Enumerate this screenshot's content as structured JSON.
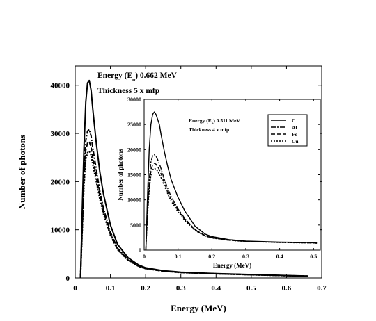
{
  "chart_data": [
    {
      "id": "main",
      "type": "line",
      "xlabel": "Energy (MeV)",
      "ylabel": "Number of photons",
      "xlim": [
        0,
        0.7
      ],
      "ylim": [
        0,
        44000
      ],
      "xticks": [
        "0",
        "0.1",
        "0.2",
        "0.3",
        "0.4",
        "0.5",
        "0.6",
        "0.7"
      ],
      "xtick_values": [
        0,
        0.1,
        0.2,
        0.3,
        0.4,
        0.5,
        0.6,
        0.7
      ],
      "yticks": [
        "0",
        "10000",
        "20000",
        "30000",
        "40000"
      ],
      "ytick_values": [
        0,
        10000,
        20000,
        30000,
        40000
      ],
      "annotations": [
        {
          "name": "energy-annotation",
          "parts": [
            "Energy (E",
            "o",
            ") 0.662 MeV"
          ]
        },
        {
          "name": "thickness-annotation",
          "text": "Thickness 5 x mfp"
        }
      ],
      "grid": false,
      "series": [
        {
          "style": "solid",
          "x": [
            0.015,
            0.02,
            0.025,
            0.03,
            0.035,
            0.04,
            0.045,
            0.05,
            0.06,
            0.07,
            0.08,
            0.1,
            0.12,
            0.15,
            0.18,
            0.2,
            0.25,
            0.3,
            0.4,
            0.5,
            0.6,
            0.662
          ],
          "y": [
            0,
            14000,
            27000,
            36500,
            40500,
            41000,
            39000,
            35000,
            28000,
            22000,
            17500,
            11000,
            7000,
            4200,
            2700,
            2100,
            1500,
            1200,
            900,
            700,
            500,
            400
          ]
        },
        {
          "style": "dash-dot",
          "x": [
            0.015,
            0.02,
            0.025,
            0.03,
            0.035,
            0.04,
            0.045,
            0.05,
            0.06,
            0.07,
            0.08,
            0.1,
            0.12,
            0.15,
            0.18,
            0.2,
            0.25,
            0.3,
            0.4,
            0.5,
            0.6,
            0.662
          ],
          "y": [
            0,
            11000,
            22000,
            28500,
            30500,
            30800,
            29500,
            27000,
            22500,
            18000,
            14500,
            9500,
            6200,
            3800,
            2500,
            2000,
            1450,
            1150,
            880,
            680,
            480,
            380
          ]
        },
        {
          "style": "dashed",
          "x": [
            0.015,
            0.02,
            0.025,
            0.03,
            0.035,
            0.04,
            0.045,
            0.05,
            0.06,
            0.07,
            0.08,
            0.1,
            0.12,
            0.15,
            0.18,
            0.2,
            0.25,
            0.3,
            0.4,
            0.5,
            0.6,
            0.662
          ],
          "y": [
            0,
            10000,
            20500,
            26500,
            28000,
            28300,
            27200,
            25000,
            21000,
            17000,
            13800,
            9000,
            6000,
            3700,
            2450,
            1950,
            1420,
            1130,
            860,
            660,
            470,
            370
          ]
        },
        {
          "style": "dotted",
          "x": [
            0.015,
            0.02,
            0.025,
            0.03,
            0.035,
            0.04,
            0.045,
            0.05,
            0.06,
            0.07,
            0.08,
            0.1,
            0.12,
            0.15,
            0.18,
            0.2,
            0.25,
            0.3,
            0.4,
            0.5,
            0.6,
            0.662
          ],
          "y": [
            0,
            9500,
            19000,
            24500,
            26000,
            26300,
            25500,
            23500,
            20000,
            16300,
            13300,
            8800,
            5900,
            3650,
            2400,
            1920,
            1400,
            1110,
            850,
            650,
            460,
            360
          ]
        }
      ]
    },
    {
      "id": "inset",
      "type": "line",
      "xlabel": "Energy (MeV)",
      "ylabel": "Number of photons",
      "xlim": [
        0,
        0.52
      ],
      "ylim": [
        0,
        30000
      ],
      "xticks": [
        "0",
        "0.1",
        "0.2",
        "0.3",
        "0.4",
        "0.5"
      ],
      "xtick_values": [
        0,
        0.1,
        0.2,
        0.3,
        0.4,
        0.5
      ],
      "yticks": [
        "0",
        "5000",
        "10000",
        "15000",
        "20000",
        "25000",
        "30000"
      ],
      "ytick_values": [
        0,
        5000,
        10000,
        15000,
        20000,
        25000,
        30000
      ],
      "annotations": [
        {
          "name": "inset-energy-annotation",
          "parts": [
            "Energy (E",
            "o",
            ") 0.511 MeV"
          ]
        },
        {
          "name": "inset-thickness-annotation",
          "text": "Thickness 4 x mfp"
        }
      ],
      "legend": {
        "placement": "top-right",
        "entries": [
          "C",
          "Al",
          "Fe",
          "Cu"
        ]
      },
      "grid": false,
      "series": [
        {
          "name": "C",
          "style": "solid",
          "x": [
            0.005,
            0.01,
            0.015,
            0.02,
            0.025,
            0.03,
            0.035,
            0.04,
            0.045,
            0.05,
            0.06,
            0.07,
            0.08,
            0.1,
            0.12,
            0.15,
            0.18,
            0.2,
            0.25,
            0.3,
            0.4,
            0.5,
            0.51
          ],
          "y": [
            0,
            11000,
            20000,
            25000,
            27000,
            27500,
            27000,
            26000,
            25000,
            23000,
            19500,
            16500,
            14000,
            10500,
            7800,
            4800,
            3200,
            2700,
            2100,
            1800,
            1600,
            1500,
            1450
          ]
        },
        {
          "name": "Al",
          "style": "dash-dot",
          "x": [
            0.005,
            0.01,
            0.015,
            0.02,
            0.025,
            0.03,
            0.035,
            0.04,
            0.045,
            0.05,
            0.06,
            0.07,
            0.08,
            0.1,
            0.12,
            0.15,
            0.18,
            0.2,
            0.25,
            0.3,
            0.4,
            0.5,
            0.51
          ],
          "y": [
            0,
            8000,
            14000,
            17500,
            18800,
            19000,
            18700,
            18000,
            17200,
            16200,
            14000,
            12200,
            10600,
            8200,
            6300,
            4100,
            2900,
            2500,
            2000,
            1750,
            1550,
            1450,
            1400
          ]
        },
        {
          "name": "Fe",
          "style": "dashed",
          "x": [
            0.005,
            0.01,
            0.015,
            0.02,
            0.025,
            0.03,
            0.035,
            0.04,
            0.045,
            0.05,
            0.06,
            0.07,
            0.08,
            0.1,
            0.12,
            0.15,
            0.18,
            0.2,
            0.25,
            0.3,
            0.4,
            0.5,
            0.51
          ],
          "y": [
            0,
            7200,
            12500,
            15800,
            17000,
            17300,
            17100,
            16600,
            16000,
            15200,
            13300,
            11600,
            10100,
            7900,
            6100,
            4000,
            2850,
            2450,
            1980,
            1730,
            1530,
            1430,
            1380
          ]
        },
        {
          "name": "Cu",
          "style": "dotted",
          "x": [
            0.005,
            0.01,
            0.015,
            0.02,
            0.025,
            0.03,
            0.035,
            0.04,
            0.045,
            0.05,
            0.06,
            0.07,
            0.08,
            0.1,
            0.12,
            0.15,
            0.18,
            0.2,
            0.25,
            0.3,
            0.4,
            0.5,
            0.51
          ],
          "y": [
            0,
            6800,
            11800,
            14800,
            16000,
            16300,
            16100,
            15700,
            15100,
            14400,
            12700,
            11100,
            9700,
            7600,
            5900,
            3900,
            2800,
            2400,
            1950,
            1710,
            1510,
            1410,
            1360
          ]
        }
      ]
    }
  ]
}
